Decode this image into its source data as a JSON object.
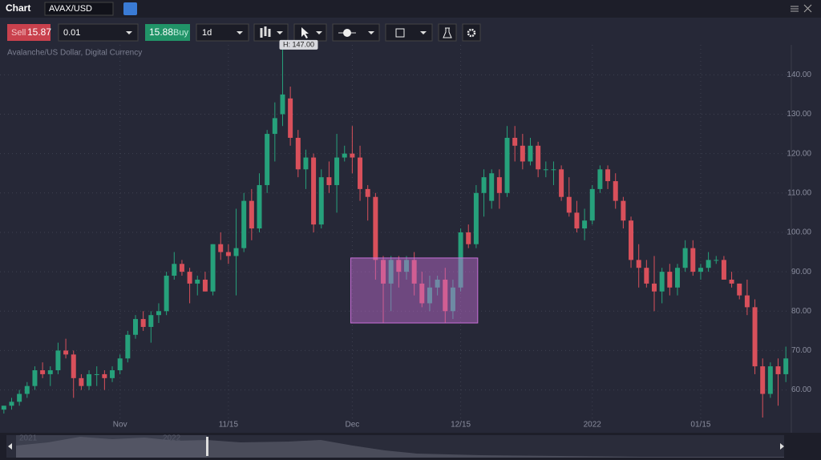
{
  "header": {
    "title": "Chart",
    "symbol": "AVAX/USD"
  },
  "toolbar": {
    "sell_label": "Sell",
    "sell_price": "15.87",
    "quantity": "0.01",
    "buy_price": "15.88",
    "buy_label": "Buy",
    "interval": "1d"
  },
  "chart_data": {
    "type": "candlestick",
    "subtitle": "Avalanche/US Dollar, Digital Currency",
    "open": [
      55,
      56,
      57,
      59,
      61,
      65,
      64,
      65,
      70,
      69,
      63,
      61,
      64,
      64,
      63,
      65,
      68,
      74,
      78,
      76,
      79,
      80,
      89,
      92,
      90,
      87,
      88,
      85,
      97,
      95,
      94,
      96,
      108,
      101,
      112,
      125,
      130,
      134,
      124,
      116,
      119,
      102,
      114,
      112,
      119,
      120,
      119,
      111,
      109,
      93,
      87,
      93,
      90,
      93,
      87,
      82,
      86,
      88,
      80,
      86,
      100,
      97,
      110,
      108,
      114,
      110,
      124,
      122,
      118,
      122,
      116,
      116,
      116,
      109,
      105,
      101,
      103,
      111,
      116,
      113,
      108,
      103,
      93,
      91,
      87,
      85,
      90,
      86,
      91,
      96,
      90,
      91,
      93,
      93,
      88,
      87,
      84,
      81,
      66,
      59,
      66,
      64
    ],
    "high": [
      56,
      58,
      60,
      62,
      66,
      67,
      66,
      72,
      73,
      70,
      64,
      65,
      66,
      65,
      66,
      69,
      75,
      79,
      80,
      80,
      82,
      90,
      95,
      93,
      91,
      89,
      90,
      97,
      100,
      97,
      106,
      110,
      111,
      115,
      126,
      133,
      147,
      137,
      126,
      121,
      120,
      116,
      118,
      125,
      122,
      127,
      122,
      112,
      110,
      94,
      94,
      94,
      94,
      95,
      90,
      89,
      89,
      91,
      88,
      101,
      102,
      112,
      116,
      116,
      116,
      127,
      127,
      125,
      124,
      123,
      118,
      118,
      117,
      114,
      108,
      106,
      112,
      117,
      117,
      115,
      109,
      104,
      97,
      93,
      94,
      91,
      92,
      92,
      98,
      98,
      92,
      95,
      94,
      94,
      90,
      87,
      88,
      83,
      68,
      67,
      68,
      71
    ],
    "low": [
      54,
      55,
      56,
      58,
      60,
      63,
      61,
      64,
      68,
      58,
      60,
      60,
      61,
      60,
      62,
      64,
      67,
      73,
      75,
      72,
      77,
      79,
      88,
      89,
      82,
      84,
      85,
      84,
      93,
      92,
      84,
      95,
      98,
      100,
      110,
      118,
      127,
      122,
      114,
      111,
      100,
      101,
      110,
      105,
      118,
      115,
      108,
      103,
      88,
      77,
      80,
      86,
      88,
      84,
      81,
      80,
      84,
      77,
      78,
      85,
      96,
      96,
      104,
      106,
      106,
      109,
      118,
      116,
      117,
      114,
      114,
      112,
      108,
      104,
      100,
      98,
      102,
      110,
      111,
      106,
      101,
      91,
      86,
      86,
      80,
      82,
      84,
      84,
      90,
      89,
      88,
      90,
      92,
      88,
      86,
      83,
      79,
      64,
      53,
      58,
      56,
      62
    ],
    "close": [
      56,
      57,
      59,
      61,
      65,
      64,
      65,
      70,
      69,
      63,
      61,
      64,
      64,
      63,
      65,
      68,
      74,
      78,
      76,
      79,
      80,
      89,
      92,
      90,
      87,
      88,
      85,
      97,
      95,
      94,
      96,
      108,
      101,
      112,
      125,
      129,
      135,
      124,
      116,
      119,
      102,
      114,
      112,
      119,
      120,
      119,
      111,
      109,
      93,
      87,
      93,
      90,
      93,
      87,
      82,
      86,
      88,
      80,
      86,
      100,
      97,
      110,
      114,
      115,
      110,
      124,
      122,
      118,
      122,
      116,
      116,
      116,
      109,
      105,
      101,
      103,
      111,
      116,
      113,
      108,
      103,
      93,
      91,
      87,
      85,
      90,
      86,
      91,
      96,
      90,
      91,
      93,
      93,
      88,
      87,
      84,
      81,
      66,
      59,
      66,
      64,
      68
    ],
    "up_color": "#26a17b",
    "down_color": "#d9505b",
    "xlim": [
      -0.5,
      101.5
    ],
    "xticks": [
      {
        "value": 15,
        "label": "Nov"
      },
      {
        "value": 29,
        "label": "11/15"
      },
      {
        "value": 45,
        "label": "Dec"
      },
      {
        "value": 59,
        "label": "12/15"
      },
      {
        "value": 76,
        "label": "2022"
      },
      {
        "value": 90,
        "label": "01/15"
      }
    ],
    "ylim": [
      53,
      148
    ],
    "yticks": [
      {
        "value": 60,
        "label": "60.00"
      },
      {
        "value": 70,
        "label": "70.00"
      },
      {
        "value": 80,
        "label": "80.00"
      },
      {
        "value": 90,
        "label": "90.00"
      },
      {
        "value": 100,
        "label": "100.00"
      },
      {
        "value": 110,
        "label": "110.00"
      },
      {
        "value": 120,
        "label": "120.00"
      },
      {
        "value": 130,
        "label": "130.00"
      },
      {
        "value": 140,
        "label": "140.00"
      }
    ],
    "grid": true,
    "high_label": "H: 147.00",
    "highlight": {
      "x0": 44.8,
      "x1": 61.2,
      "y0": 77,
      "y1": 93.5,
      "color": "#c86fd8"
    }
  },
  "navigator": {
    "labels": [
      "2021",
      "2022"
    ]
  }
}
